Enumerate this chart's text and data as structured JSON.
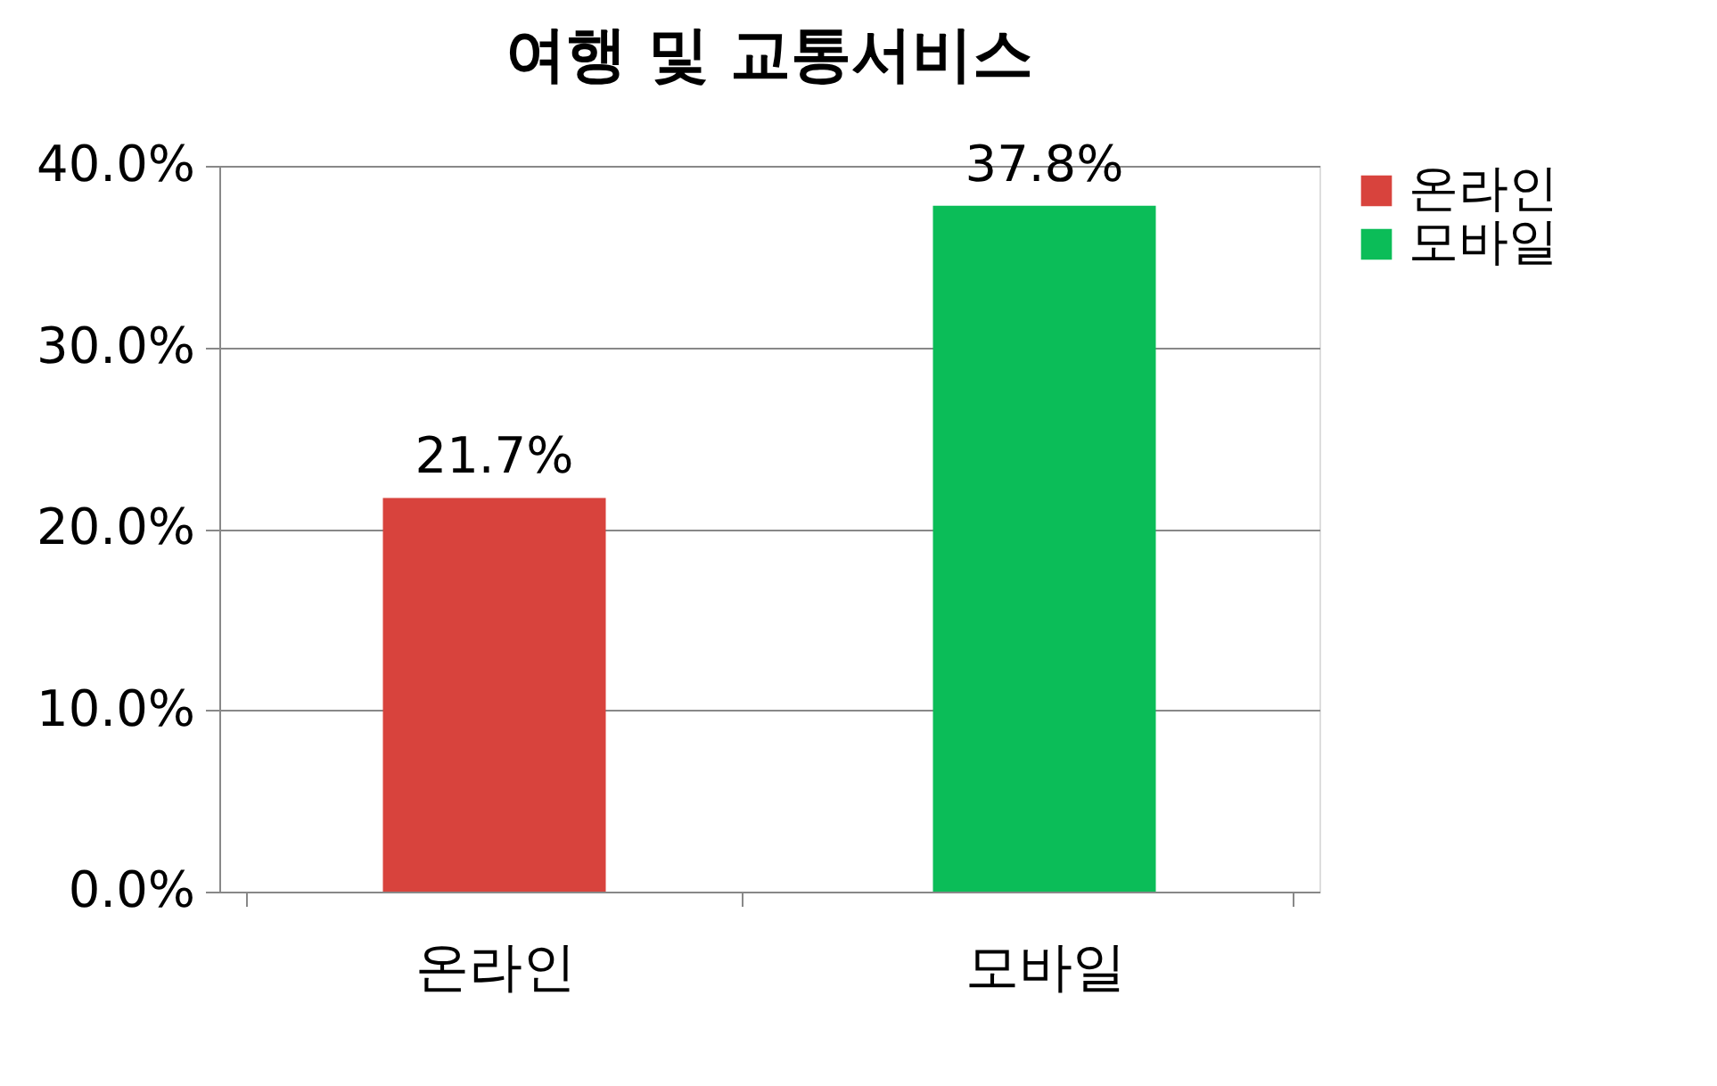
{
  "chart_data": {
    "type": "bar",
    "title": "여행 및 교통서비스",
    "categories": [
      "온라인",
      "모바일"
    ],
    "series": [
      {
        "name": "온라인",
        "color": "#d8433d",
        "values": [
          21.7,
          null
        ],
        "value_labels": [
          "21.7%",
          null
        ]
      },
      {
        "name": "모바일",
        "color": "#0bbd58",
        "values": [
          null,
          37.8
        ],
        "value_labels": [
          null,
          "37.8%"
        ]
      }
    ],
    "ylim": [
      0,
      40
    ],
    "yticks": [
      {
        "value": 0,
        "label": "0.0%"
      },
      {
        "value": 10,
        "label": "10.0%"
      },
      {
        "value": 20,
        "label": "20.0%"
      },
      {
        "value": 30,
        "label": "30.0%"
      },
      {
        "value": 40,
        "label": "40.0%"
      }
    ],
    "grid": "y",
    "legend": "right"
  }
}
